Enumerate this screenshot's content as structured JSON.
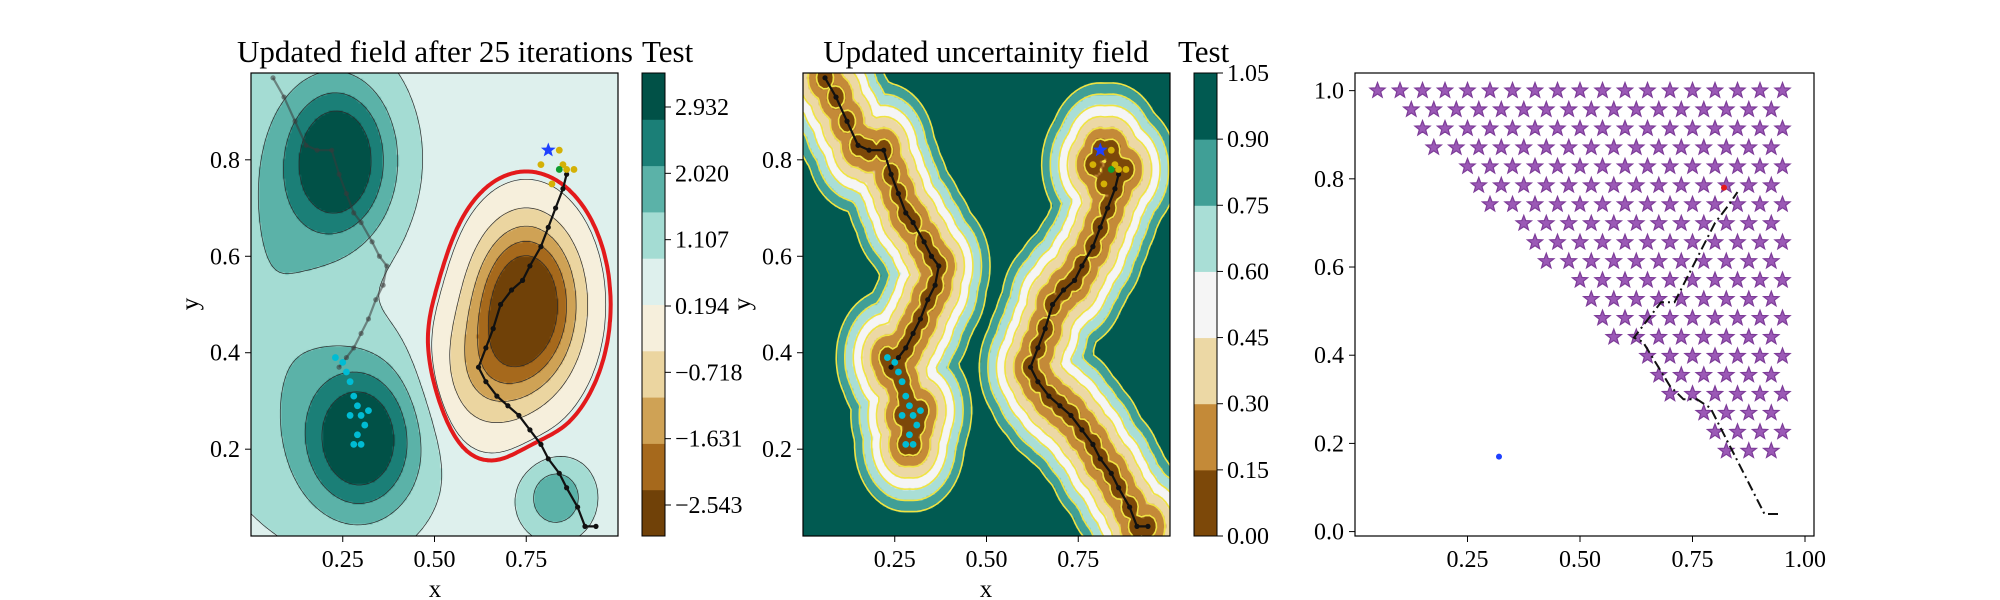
{
  "figure": {
    "colors": {
      "brbg": [
        "#543005",
        "#8c510a",
        "#bf812d",
        "#dfc27d",
        "#f6e8c3",
        "#f5f5f5",
        "#c7eae5",
        "#80cdc1",
        "#35978f",
        "#01665e",
        "#003c30"
      ],
      "level_line": "#e31a1c",
      "uncertainty_contour": "#f0e442",
      "path": "#111111",
      "star": "#9b59b6",
      "agents": [
        "#00bcd4",
        "#d4b106",
        "#1e40ff",
        "#0f9d2f"
      ]
    }
  },
  "chart_data": [
    {
      "type": "contour",
      "title": "Updated field after 25 iterations",
      "colorbar_title": "Test",
      "xlabel": "x",
      "ylabel": "y",
      "xlim": [
        0.0,
        1.0
      ],
      "ylim": [
        0.02,
        0.98
      ],
      "x_ticks": [
        "0.25",
        "0.50",
        "0.75"
      ],
      "x_tick_values": [
        0.25,
        0.5,
        0.75
      ],
      "y_ticks": [
        "0.2",
        "0.4",
        "0.6",
        "0.8"
      ],
      "y_tick_values": [
        0.2,
        0.4,
        0.6,
        0.8
      ],
      "colorbar_ticks": [
        "2.932",
        "2.020",
        "1.107",
        "0.194",
        "−0.718",
        "−1.631",
        "−2.543"
      ],
      "colorbar_range": [
        -3.0,
        3.39
      ],
      "colorbar_bands": 10,
      "field_components": [
        {
          "x": 0.24,
          "y": 0.8,
          "sx": 0.1,
          "sy": 0.11,
          "amp": 3.0
        },
        {
          "x": 0.3,
          "y": 0.22,
          "sx": 0.11,
          "sy": 0.11,
          "amp": 3.0
        },
        {
          "x": 0.83,
          "y": 0.1,
          "sx": 0.06,
          "sy": 0.05,
          "amp": 1.5
        },
        {
          "x": 0.75,
          "y": 0.5,
          "sx": 0.1,
          "sy": 0.12,
          "amp": -4.2
        },
        {
          "x": 0.62,
          "y": 0.35,
          "sx": 0.1,
          "sy": 0.1,
          "amp": -1.2
        },
        {
          "x": 0.05,
          "y": 0.55,
          "sx": 0.15,
          "sy": 0.3,
          "amp": 0.8
        }
      ],
      "field_offset": 0.6,
      "boundary_level": 0.3,
      "paths": [
        {
          "name": "",
          "x": [
            0.06,
            0.09,
            0.12,
            0.15,
            0.18,
            0.22,
            0.24,
            0.26,
            0.28,
            0.3,
            0.33,
            0.35,
            0.37,
            0.36,
            0.34,
            0.32,
            0.3,
            0.28,
            0.26,
            0.24
          ],
          "y": [
            0.97,
            0.93,
            0.88,
            0.83,
            0.82,
            0.82,
            0.77,
            0.73,
            0.69,
            0.67,
            0.63,
            0.6,
            0.58,
            0.54,
            0.51,
            0.47,
            0.44,
            0.41,
            0.39,
            0.37
          ]
        },
        {
          "name": "",
          "x": [
            0.94,
            0.91,
            0.89,
            0.86,
            0.84,
            0.81,
            0.79,
            0.76,
            0.73,
            0.7,
            0.67,
            0.64,
            0.62,
            0.64,
            0.66,
            0.68,
            0.71,
            0.74,
            0.76,
            0.79,
            0.81,
            0.83,
            0.85,
            0.86
          ],
          "y": [
            0.04,
            0.04,
            0.08,
            0.12,
            0.15,
            0.18,
            0.21,
            0.24,
            0.27,
            0.29,
            0.31,
            0.34,
            0.37,
            0.41,
            0.45,
            0.5,
            0.53,
            0.55,
            0.58,
            0.62,
            0.66,
            0.7,
            0.74,
            0.77
          ]
        }
      ],
      "agent_groups": [
        {
          "color_index": 0,
          "x": [
            0.23,
            0.25,
            0.26,
            0.27,
            0.28,
            0.29,
            0.3,
            0.31,
            0.29,
            0.28,
            0.3,
            0.27,
            0.32
          ],
          "y": [
            0.39,
            0.38,
            0.36,
            0.34,
            0.31,
            0.29,
            0.27,
            0.25,
            0.23,
            0.21,
            0.21,
            0.27,
            0.28
          ]
        },
        {
          "color_index": 1,
          "x": [
            0.79,
            0.81,
            0.84,
            0.85,
            0.86,
            0.88,
            0.82
          ],
          "y": [
            0.79,
            0.82,
            0.82,
            0.79,
            0.78,
            0.78,
            0.75
          ]
        },
        {
          "color_index": 3,
          "x": [
            0.84
          ],
          "y": [
            0.78
          ]
        }
      ],
      "marker": {
        "x": 0.81,
        "y": 0.82,
        "color_index": 2
      }
    },
    {
      "type": "contour",
      "title": "Updated uncertainity field",
      "colorbar_title": "Test",
      "xlabel": "x",
      "ylabel": "y",
      "xlim": [
        0.0,
        1.0
      ],
      "ylim": [
        0.02,
        0.98
      ],
      "x_ticks": [
        "0.25",
        "0.50",
        "0.75"
      ],
      "x_tick_values": [
        0.25,
        0.5,
        0.75
      ],
      "y_ticks": [
        "0.2",
        "0.4",
        "0.6",
        "0.8"
      ],
      "y_tick_values": [
        0.2,
        0.4,
        0.6,
        0.8
      ],
      "colorbar_ticks": [
        "1.05",
        "0.90",
        "0.75",
        "0.60",
        "0.45",
        "0.30",
        "0.15",
        "0.00"
      ],
      "colorbar_tick_values": [
        1.05,
        0.9,
        0.75,
        0.6,
        0.45,
        0.3,
        0.15,
        0.0
      ],
      "colorbar_range": [
        0.0,
        1.05
      ],
      "levels": [
        0.0,
        0.15,
        0.3,
        0.45,
        0.6,
        0.75,
        0.9,
        1.05
      ],
      "uncertainty_length_scale": 0.155,
      "paths": [
        {
          "name": "",
          "x": [
            0.06,
            0.09,
            0.12,
            0.15,
            0.18,
            0.22,
            0.24,
            0.26,
            0.28,
            0.3,
            0.33,
            0.35,
            0.37,
            0.36,
            0.34,
            0.32,
            0.3,
            0.28,
            0.26,
            0.24
          ],
          "y": [
            0.97,
            0.93,
            0.88,
            0.83,
            0.82,
            0.82,
            0.77,
            0.73,
            0.69,
            0.67,
            0.63,
            0.6,
            0.58,
            0.54,
            0.51,
            0.47,
            0.44,
            0.41,
            0.39,
            0.37
          ]
        },
        {
          "name": "",
          "x": [
            0.94,
            0.91,
            0.89,
            0.86,
            0.84,
            0.81,
            0.79,
            0.76,
            0.73,
            0.7,
            0.67,
            0.64,
            0.62,
            0.64,
            0.66,
            0.68,
            0.71,
            0.74,
            0.76,
            0.79,
            0.81,
            0.83,
            0.85,
            0.86
          ],
          "y": [
            0.04,
            0.04,
            0.08,
            0.12,
            0.15,
            0.18,
            0.21,
            0.24,
            0.27,
            0.29,
            0.31,
            0.34,
            0.37,
            0.41,
            0.45,
            0.5,
            0.53,
            0.55,
            0.58,
            0.62,
            0.66,
            0.7,
            0.74,
            0.77
          ]
        }
      ],
      "agent_groups": [
        {
          "color_index": 0,
          "x": [
            0.23,
            0.25,
            0.26,
            0.27,
            0.28,
            0.29,
            0.3,
            0.31,
            0.29,
            0.28,
            0.3,
            0.27,
            0.32
          ],
          "y": [
            0.39,
            0.38,
            0.36,
            0.34,
            0.31,
            0.29,
            0.27,
            0.25,
            0.23,
            0.21,
            0.21,
            0.27,
            0.28
          ]
        },
        {
          "color_index": 1,
          "x": [
            0.79,
            0.81,
            0.84,
            0.85,
            0.86,
            0.88,
            0.82
          ],
          "y": [
            0.79,
            0.82,
            0.82,
            0.79,
            0.78,
            0.78,
            0.75
          ]
        },
        {
          "color_index": 3,
          "x": [
            0.84
          ],
          "y": [
            0.78
          ]
        }
      ],
      "marker": {
        "x": 0.81,
        "y": 0.82,
        "color_index": 2
      }
    },
    {
      "type": "scatter",
      "title": "",
      "xlabel": "",
      "ylabel": "",
      "xlim": [
        0.0,
        1.02
      ],
      "ylim": [
        -0.01,
        1.04
      ],
      "x_ticks": [
        "0.25",
        "0.50",
        "0.75",
        "1.00"
      ],
      "x_tick_values": [
        0.25,
        0.5,
        0.75,
        1.0
      ],
      "y_ticks": [
        "0.0",
        "0.2",
        "0.4",
        "0.6",
        "0.8",
        "1.0"
      ],
      "y_tick_values": [
        0.0,
        0.2,
        0.4,
        0.6,
        0.8,
        1.0
      ],
      "star_grid": {
        "x_start": 0.05,
        "x_end": 0.95,
        "x_step": 0.05,
        "y_start": 1.0,
        "y_end": 0.16,
        "y_step": 0.043,
        "row_shift": 0.025,
        "boundary_slope": 1.04
      },
      "path": {
        "x": [
          0.94,
          0.91,
          0.88,
          0.85,
          0.82,
          0.79,
          0.76,
          0.73,
          0.7,
          0.67,
          0.64,
          0.62,
          0.65,
          0.68,
          0.71,
          0.74,
          0.77,
          0.8,
          0.83,
          0.85
        ],
        "y": [
          0.04,
          0.04,
          0.1,
          0.16,
          0.22,
          0.28,
          0.3,
          0.3,
          0.33,
          0.38,
          0.43,
          0.44,
          0.48,
          0.52,
          0.52,
          0.58,
          0.64,
          0.7,
          0.74,
          0.77
        ]
      },
      "dot": {
        "x": 0.32,
        "y": 0.17
      },
      "red_marker": {
        "x": 0.82,
        "y": 0.78
      }
    }
  ]
}
